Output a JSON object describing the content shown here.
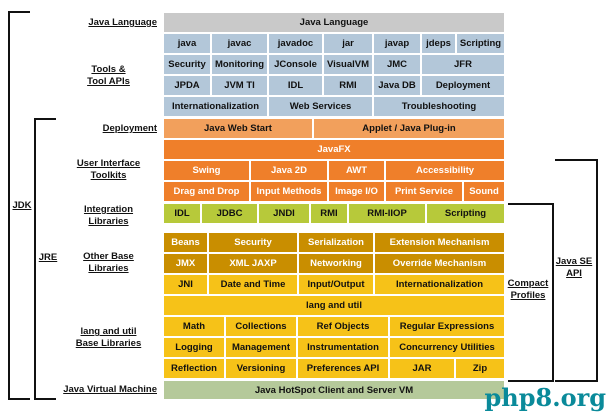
{
  "labels": {
    "jdk": "JDK",
    "jre": "JRE",
    "java_language": "Java Language",
    "tools_apis": "Tools &\nTool APIs",
    "deployment": "Deployment",
    "ui_toolkits": "User Interface\nToolkits",
    "integration": "Integration\nLibraries",
    "other_base": "Other Base\nLibraries",
    "lang_util_base": "lang and util\nBase Libraries",
    "jvm": "Java Virtual Machine",
    "compact_profiles": "Compact\nProfiles",
    "java_se_api": "Java SE\nAPI"
  },
  "rows": {
    "language": [
      "Java Language"
    ],
    "tools1": [
      "java",
      "javac",
      "javadoc",
      "jar",
      "javap",
      "jdeps",
      "Scripting"
    ],
    "tools2": [
      "Security",
      "Monitoring",
      "JConsole",
      "VisualVM",
      "JMC",
      "JFR"
    ],
    "tools3": [
      "JPDA",
      "JVM TI",
      "IDL",
      "RMI",
      "Java DB",
      "Deployment"
    ],
    "tools4": [
      "Internationalization",
      "Web Services",
      "Troubleshooting"
    ],
    "deploy": [
      "Java Web Start",
      "Applet / Java Plug-in"
    ],
    "javafx": [
      "JavaFX"
    ],
    "ui1": [
      "Swing",
      "Java 2D",
      "AWT",
      "Accessibility"
    ],
    "ui2": [
      "Drag and Drop",
      "Input Methods",
      "Image I/O",
      "Print Service",
      "Sound"
    ],
    "integ": [
      "IDL",
      "JDBC",
      "JNDI",
      "RMI",
      "RMI-IIOP",
      "Scripting"
    ],
    "other1": [
      "Beans",
      "Security",
      "Serialization",
      "Extension Mechanism"
    ],
    "other2": [
      "JMX",
      "XML JAXP",
      "Networking",
      "Override Mechanism"
    ],
    "other3": [
      "JNI",
      "Date and Time",
      "Input/Output",
      "Internationalization"
    ],
    "langutil": [
      "lang and util"
    ],
    "base1": [
      "Math",
      "Collections",
      "Ref Objects",
      "Regular Expressions"
    ],
    "base2": [
      "Logging",
      "Management",
      "Instrumentation",
      "Concurrency Utilities"
    ],
    "base3": [
      "Reflection",
      "Versioning",
      "Preferences API",
      "JAR",
      "Zip"
    ],
    "vm": [
      "Java HotSpot Client and Server VM"
    ]
  },
  "watermark": "php8.org",
  "colors": {
    "gray": "#c9c9c9",
    "blue": "#b3c7d9",
    "orange": "#f2a05c",
    "orange_dark": "#ef7f2a",
    "green": "#b7c93a",
    "gold": "#c98e00",
    "yellow": "#f6c218",
    "vm_green": "#b5c99a"
  }
}
